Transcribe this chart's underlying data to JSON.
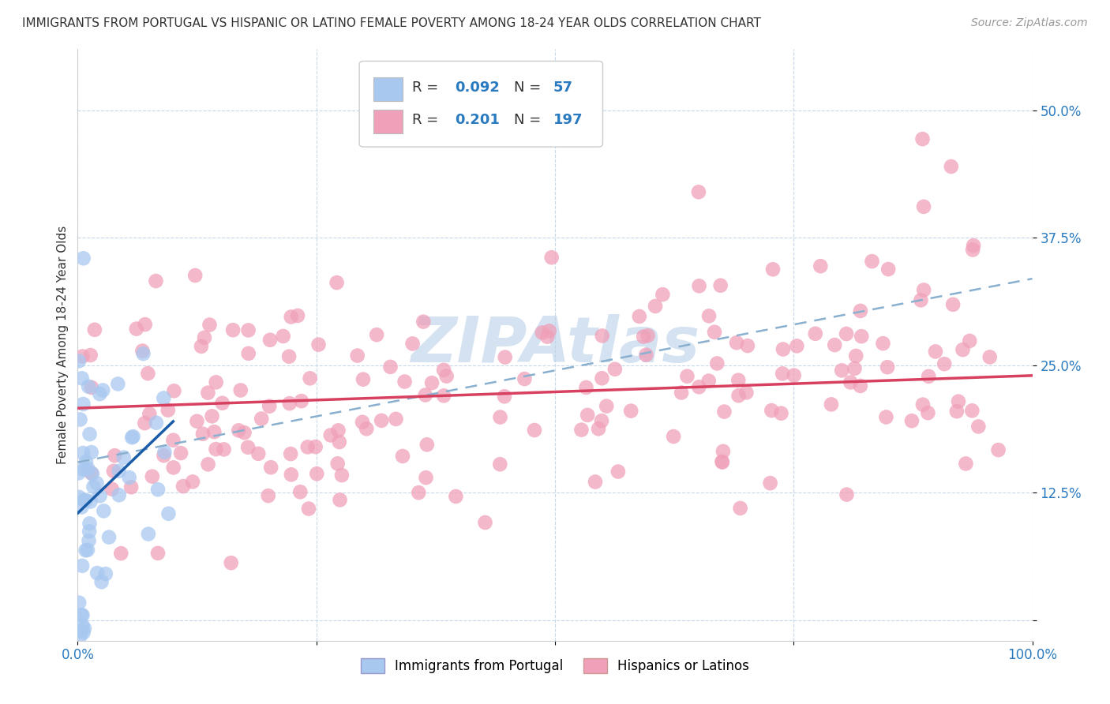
{
  "title": "IMMIGRANTS FROM PORTUGAL VS HISPANIC OR LATINO FEMALE POVERTY AMONG 18-24 YEAR OLDS CORRELATION CHART",
  "source": "Source: ZipAtlas.com",
  "ylabel": "Female Poverty Among 18-24 Year Olds",
  "xlim": [
    0.0,
    1.0
  ],
  "ylim": [
    -0.02,
    0.56
  ],
  "yticks": [
    0.0,
    0.125,
    0.25,
    0.375,
    0.5
  ],
  "ytick_labels": [
    "",
    "12.5%",
    "25.0%",
    "37.5%",
    "50.0%"
  ],
  "xticks": [
    0.0,
    0.25,
    0.5,
    0.75,
    1.0
  ],
  "xtick_labels": [
    "0.0%",
    "",
    "",
    "",
    "100.0%"
  ],
  "R_blue": 0.092,
  "N_blue": 57,
  "R_pink": 0.201,
  "N_pink": 197,
  "blue_color": "#a8c8f0",
  "blue_line_color": "#1a5ca8",
  "pink_color": "#f0a0b8",
  "pink_line_color": "#d84060",
  "dash_line_color": "#8ab0d0",
  "watermark": "ZIPAtlas",
  "watermark_color": "#b8cfe8",
  "legend_label_blue": "Immigrants from Portugal",
  "legend_label_pink": "Hispanics or Latinos",
  "blue_line_x0": 0.0,
  "blue_line_y0": 0.105,
  "blue_line_x1": 0.1,
  "blue_line_y1": 0.195,
  "pink_line_x0": 0.0,
  "pink_line_y0": 0.208,
  "pink_line_x1": 1.0,
  "pink_line_y1": 0.24,
  "dash_line_x0": 0.0,
  "dash_line_y0": 0.155,
  "dash_line_x1": 1.0,
  "dash_line_y1": 0.335
}
